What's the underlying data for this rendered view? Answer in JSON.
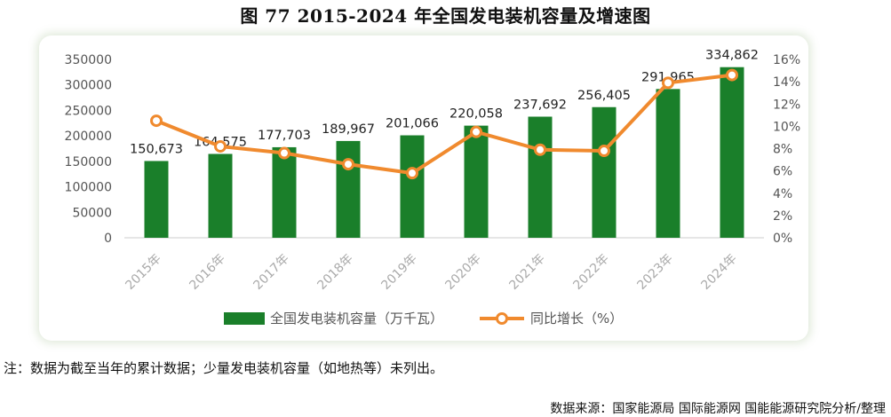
{
  "figure_title": "图 77 2015-2024 年全国发电装机容量及增速图",
  "note": "注：数据为截至当年的累计数据；少量发电装机容量（如地热等）未列出。",
  "source": "数据来源：国家能源局 国际能源网 国能能源研究院分析/整理",
  "colors": {
    "bar": "#1a7f2a",
    "line": "#f08a2e",
    "text": "#555555",
    "axis": "#cccccc"
  },
  "chart_data": {
    "type": "bar",
    "categories": [
      "2015年",
      "2016年",
      "2017年",
      "2018年",
      "2019年",
      "2020年",
      "2021年",
      "2022年",
      "2023年",
      "2024年"
    ],
    "series": [
      {
        "name": "全国发电装机容量（万千瓦）",
        "kind": "bar",
        "values": [
          150673,
          164575,
          177703,
          189967,
          201066,
          220058,
          237692,
          256405,
          291965,
          334862
        ],
        "labels": [
          "150,673",
          "164,575",
          "177,703",
          "189,967",
          "201,066",
          "220,058",
          "237,692",
          "256,405",
          "291,965",
          "334,862"
        ]
      },
      {
        "name": "同比增长（%）",
        "kind": "line",
        "axis": "right",
        "values": [
          10.5,
          8.2,
          7.6,
          6.6,
          5.8,
          9.5,
          7.9,
          7.8,
          13.9,
          14.6
        ]
      }
    ],
    "y_left": {
      "min": 0,
      "max": 350000,
      "ticks": [
        "0",
        "50000",
        "100000",
        "150000",
        "200000",
        "250000",
        "300000",
        "350000"
      ]
    },
    "y_right": {
      "min": 0,
      "max": 16,
      "ticks": [
        "0%",
        "2%",
        "4%",
        "6%",
        "8%",
        "10%",
        "12%",
        "14%",
        "16%"
      ]
    },
    "legend_position": "bottom",
    "grid": false
  }
}
